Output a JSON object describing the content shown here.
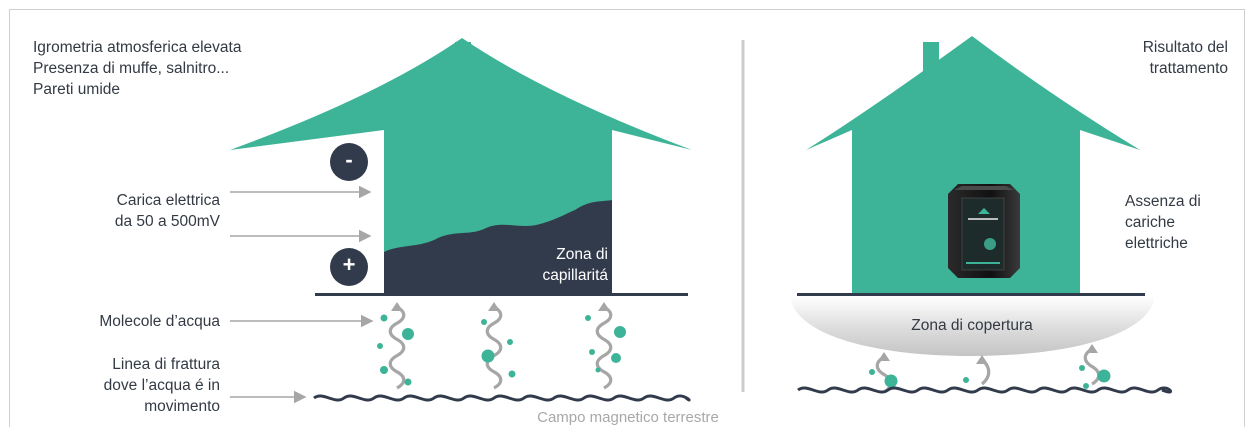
{
  "colors": {
    "house": "#3db497",
    "dark": "#323b4c",
    "arrow": "#a6a6a6",
    "text": "#333a44",
    "footer": "#a8a8a8"
  },
  "left": {
    "conditions": [
      "Igrometria atmosferica elevata",
      "Presenza di muffe, salnitro...",
      "Pareti umide"
    ],
    "charge_label": [
      "Carica elettrica",
      "da 50 a 500mV"
    ],
    "minus_symbol": "-",
    "plus_symbol": "+",
    "capillarity_label": [
      "Zona di",
      "capillaritá"
    ],
    "molecules_label": "Molecole d’acqua",
    "fracture_label": [
      "Linea di frattura",
      "dove l’acqua é in",
      "movimento"
    ]
  },
  "right": {
    "result_label": [
      "Risultato del",
      "trattamento"
    ],
    "absence_label": [
      "Assenza di",
      "cariche",
      "elettriche"
    ],
    "coverage_label": "Zona di copertura",
    "device_icon": "treatment-device-icon"
  },
  "footer": {
    "caption": "Campo magnetico terrestre"
  }
}
